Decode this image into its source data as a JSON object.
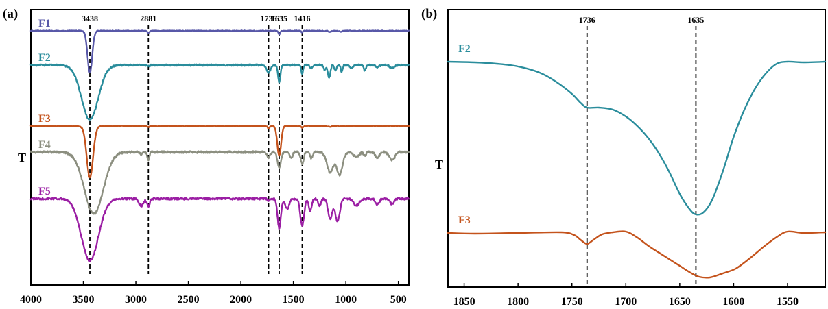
{
  "chart_data": [
    {
      "panel": "(a)",
      "type": "line",
      "ylabel": "T",
      "xlim": [
        4000,
        400
      ],
      "xticks": [
        4000,
        3500,
        3000,
        2500,
        2000,
        1500,
        1000,
        500
      ],
      "peak_markers": [
        {
          "x": 3438,
          "label": "3438"
        },
        {
          "x": 2881,
          "label": "2881"
        },
        {
          "x": 1736,
          "label": "1736"
        },
        {
          "x": 1635,
          "label": "1635"
        },
        {
          "x": 1416,
          "label": "1416"
        }
      ],
      "series": [
        {
          "name": "F1",
          "color": "#5858a8",
          "baseline": 45,
          "dips": [
            [
              3438,
              170,
              22
            ],
            [
              2881,
              8,
              10
            ],
            [
              1635,
              15,
              8
            ],
            [
              1416,
              6,
              8
            ],
            [
              1150,
              4,
              15
            ],
            [
              1050,
              3,
              15
            ]
          ],
          "noise": 0.6,
          "seed": 1
        },
        {
          "name": "F2",
          "color": "#2a8d9c",
          "baseline": 95,
          "dips": [
            [
              3438,
              220,
              80
            ],
            [
              2881,
              4,
              12
            ],
            [
              1736,
              30,
              18
            ],
            [
              1635,
              68,
              12
            ],
            [
              1416,
              40,
              8
            ],
            [
              1330,
              14,
              12
            ],
            [
              1200,
              20,
              10
            ],
            [
              1160,
              52,
              12
            ],
            [
              1100,
              20,
              10
            ],
            [
              1040,
              28,
              8
            ],
            [
              950,
              14,
              15
            ],
            [
              820,
              22,
              10
            ],
            [
              700,
              10,
              15
            ],
            [
              560,
              14,
              18
            ]
          ],
          "noise": 1.2,
          "seed": 2
        },
        {
          "name": "F3",
          "color": "#c4531c",
          "baseline": 184,
          "dips": [
            [
              3438,
              210,
              30
            ],
            [
              2881,
              4,
              10
            ],
            [
              1736,
              10,
              10
            ],
            [
              1635,
              120,
              18
            ],
            [
              1416,
              6,
              10
            ],
            [
              1150,
              4,
              12
            ]
          ],
          "noise": 0.6,
          "seed": 3
        },
        {
          "name": "F4",
          "color": "#8c8f80",
          "baseline": 222,
          "dips": [
            [
              3400,
              250,
              90
            ],
            [
              2881,
              30,
              10
            ],
            [
              2950,
              8,
              12
            ],
            [
              1736,
              22,
              14
            ],
            [
              1635,
              65,
              16
            ],
            [
              1520,
              24,
              12
            ],
            [
              1416,
              48,
              14
            ],
            [
              1330,
              24,
              12
            ],
            [
              1150,
              82,
              30
            ],
            [
              1060,
              92,
              28
            ],
            [
              900,
              20,
              25
            ],
            [
              820,
              14,
              12
            ],
            [
              700,
              22,
              20
            ],
            [
              560,
              34,
              25
            ]
          ],
          "noise": 1.5,
          "seed": 4
        },
        {
          "name": "F5",
          "color": "#9b1ea4",
          "baseline": 290,
          "dips": [
            [
              3438,
              250,
              82
            ],
            [
              2950,
              30,
              20
            ],
            [
              2881,
              30,
              14
            ],
            [
              1736,
              10,
              10
            ],
            [
              1635,
              120,
              16
            ],
            [
              1560,
              40,
              20
            ],
            [
              1416,
              110,
              18
            ],
            [
              1340,
              50,
              14
            ],
            [
              1250,
              28,
              14
            ],
            [
              1150,
              80,
              20
            ],
            [
              1080,
              90,
              22
            ],
            [
              900,
              28,
              28
            ],
            [
              700,
              24,
              18
            ],
            [
              560,
              22,
              18
            ]
          ],
          "noise": 1.5,
          "seed": 5
        }
      ]
    },
    {
      "panel": "(b)",
      "type": "line",
      "ylabel": "T",
      "xlim": [
        1865,
        1515
      ],
      "xticks": [
        1850,
        1800,
        1750,
        1700,
        1650,
        1600,
        1550
      ],
      "peak_markers": [
        {
          "x": 1736,
          "label": "1736"
        },
        {
          "x": 1635,
          "label": "1635"
        }
      ],
      "series": [
        {
          "name": "F2",
          "color": "#2a8d9c",
          "points": [
            [
              1865,
              90
            ],
            [
              1840,
              91
            ],
            [
              1820,
              93
            ],
            [
              1800,
              97
            ],
            [
              1780,
              106
            ],
            [
              1765,
              119
            ],
            [
              1750,
              137
            ],
            [
              1742,
              150
            ],
            [
              1736,
              157
            ],
            [
              1725,
              157
            ],
            [
              1712,
              160
            ],
            [
              1700,
              170
            ],
            [
              1690,
              183
            ],
            [
              1680,
              200
            ],
            [
              1670,
              222
            ],
            [
              1660,
              250
            ],
            [
              1650,
              283
            ],
            [
              1641,
              305
            ],
            [
              1635,
              313
            ],
            [
              1628,
              310
            ],
            [
              1620,
              292
            ],
            [
              1610,
              250
            ],
            [
              1600,
              200
            ],
            [
              1590,
              160
            ],
            [
              1580,
              129
            ],
            [
              1570,
              107
            ],
            [
              1560,
              93
            ],
            [
              1550,
              90
            ],
            [
              1535,
              91
            ],
            [
              1515,
              90
            ]
          ]
        },
        {
          "name": "F3",
          "color": "#c4531c",
          "points": [
            [
              1865,
              340
            ],
            [
              1840,
              341
            ],
            [
              1800,
              340
            ],
            [
              1760,
              339
            ],
            [
              1748,
              343
            ],
            [
              1742,
              350
            ],
            [
              1736,
              356
            ],
            [
              1730,
              350
            ],
            [
              1722,
              342
            ],
            [
              1712,
              339
            ],
            [
              1700,
              338
            ],
            [
              1690,
              346
            ],
            [
              1678,
              360
            ],
            [
              1665,
              373
            ],
            [
              1650,
              388
            ],
            [
              1640,
              398
            ],
            [
              1632,
              404
            ],
            [
              1622,
              405
            ],
            [
              1610,
              399
            ],
            [
              1598,
              392
            ],
            [
              1585,
              377
            ],
            [
              1572,
              360
            ],
            [
              1560,
              346
            ],
            [
              1550,
              338
            ],
            [
              1535,
              340
            ],
            [
              1515,
              339
            ]
          ]
        }
      ]
    }
  ]
}
